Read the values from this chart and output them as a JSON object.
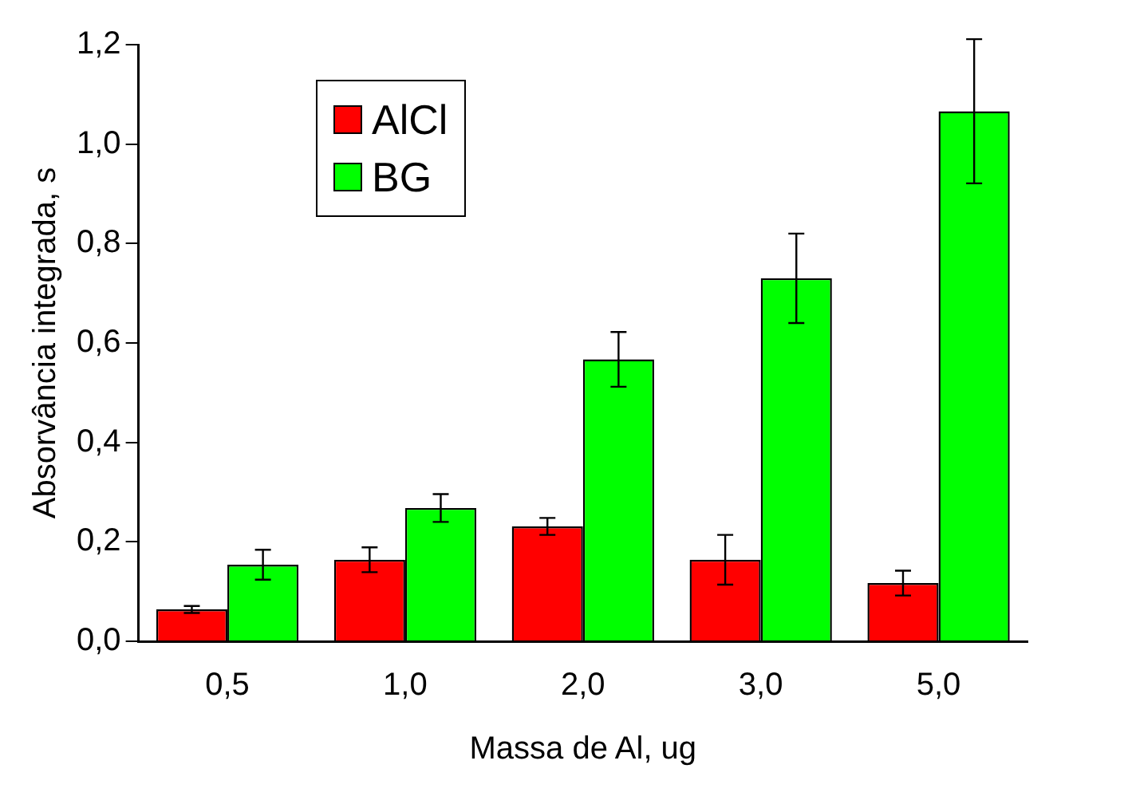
{
  "chart_data": {
    "type": "bar",
    "xlabel": "Massa de Al, ug",
    "ylabel": "Absorvância integrada, s",
    "categories": [
      "0,5",
      "1,0",
      "2,0",
      "3,0",
      "5,0"
    ],
    "series": [
      {
        "name": "AlCl",
        "color": "#ff0000",
        "values": [
          0.064,
          0.164,
          0.231,
          0.164,
          0.117
        ],
        "errors": [
          0.007,
          0.025,
          0.017,
          0.05,
          0.025
        ]
      },
      {
        "name": "BG",
        "color": "#00ff00",
        "values": [
          0.154,
          0.268,
          0.567,
          0.73,
          1.066
        ],
        "errors": [
          0.03,
          0.028,
          0.055,
          0.09,
          0.145
        ]
      }
    ],
    "ylim": [
      0,
      1.2
    ],
    "yticks": [
      {
        "value": 0,
        "label": "0,0"
      },
      {
        "value": 0.2,
        "label": "0,2"
      },
      {
        "value": 0.4,
        "label": "0,4"
      },
      {
        "value": 0.6,
        "label": "0,6"
      },
      {
        "value": 0.8,
        "label": "0,8"
      },
      {
        "value": 1,
        "label": "1,0"
      },
      {
        "value": 1.2,
        "label": "1,2"
      }
    ],
    "legend": "top left",
    "grid": false
  }
}
